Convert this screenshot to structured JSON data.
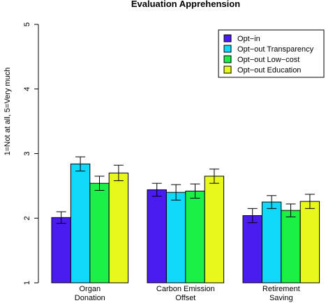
{
  "chart_data": {
    "type": "bar",
    "title": "Evaluation Apprehension",
    "xlabel": "",
    "ylabel": "1=Not at all, 5=Very much",
    "ylim": [
      1,
      5
    ],
    "yticks": [
      1,
      2,
      3,
      4,
      5
    ],
    "grid": false,
    "legend_position": "top-right",
    "categories": [
      [
        "Organ",
        "Donation"
      ],
      [
        "Carbon Emission",
        "Offset"
      ],
      [
        "Retirement",
        "Saving"
      ]
    ],
    "series": [
      {
        "name": "Opt−in",
        "color": "#4a1cf0",
        "values": [
          2.01,
          2.44,
          2.04
        ],
        "err": [
          0.09,
          0.1,
          0.11
        ]
      },
      {
        "name": "Opt−out Transparency",
        "color": "#10d8f8",
        "values": [
          2.84,
          2.4,
          2.25
        ],
        "err": [
          0.11,
          0.12,
          0.1
        ]
      },
      {
        "name": "Opt−out Low−cost",
        "color": "#1af046",
        "values": [
          2.54,
          2.42,
          2.12
        ],
        "err": [
          0.11,
          0.11,
          0.1
        ]
      },
      {
        "name": "Opt−out Education",
        "color": "#e8f81a",
        "values": [
          2.7,
          2.65,
          2.26
        ],
        "err": [
          0.12,
          0.11,
          0.11
        ]
      }
    ]
  }
}
